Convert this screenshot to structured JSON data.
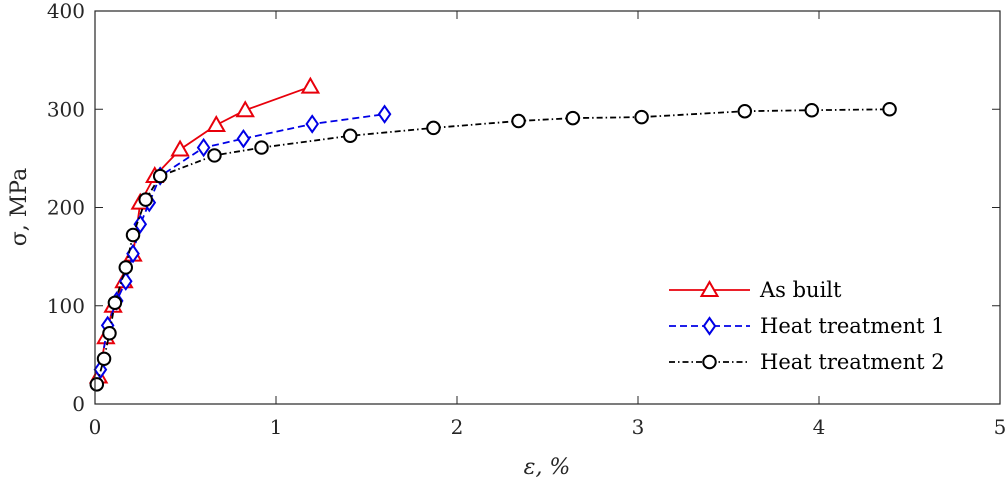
{
  "chart_data": {
    "type": "line",
    "xlabel": "ε, %",
    "ylabel": "σ, MPa",
    "xlim": [
      0,
      5
    ],
    "ylim": [
      0,
      400
    ],
    "xticks": [
      "0",
      "1",
      "2",
      "3",
      "4",
      "5"
    ],
    "yticks": [
      "0",
      "100",
      "200",
      "300",
      "400"
    ],
    "legend_position": "bottom-right",
    "grid": false,
    "series": [
      {
        "name": "As built",
        "color": "#e8000b",
        "marker": "triangle",
        "line_style": "solid",
        "x": [
          0.02,
          0.06,
          0.1,
          0.16,
          0.21,
          0.25,
          0.33,
          0.47,
          0.67,
          0.83,
          1.19
        ],
        "y": [
          28,
          68,
          100,
          125,
          152,
          205,
          232,
          259,
          284,
          299,
          323
        ]
      },
      {
        "name": "Heat treatment 1",
        "color": "#0000e6",
        "marker": "diamond",
        "line_style": "dashed",
        "x": [
          0.03,
          0.07,
          0.12,
          0.17,
          0.21,
          0.25,
          0.3,
          0.36,
          0.6,
          0.82,
          1.2,
          1.6
        ],
        "y": [
          35,
          80,
          105,
          125,
          153,
          183,
          205,
          232,
          261,
          270,
          285,
          295
        ]
      },
      {
        "name": "Heat treatment 2",
        "color": "#000000",
        "marker": "circle",
        "line_style": "dashdot",
        "x": [
          0.01,
          0.05,
          0.08,
          0.11,
          0.17,
          0.21,
          0.28,
          0.36,
          0.66,
          0.92,
          1.41,
          1.87,
          2.34,
          2.64,
          3.02,
          3.59,
          3.96,
          4.39
        ],
        "y": [
          20,
          46,
          72,
          103,
          139,
          172,
          208,
          232,
          253,
          261,
          273,
          281,
          288,
          291,
          292,
          298,
          299,
          300
        ]
      }
    ]
  }
}
